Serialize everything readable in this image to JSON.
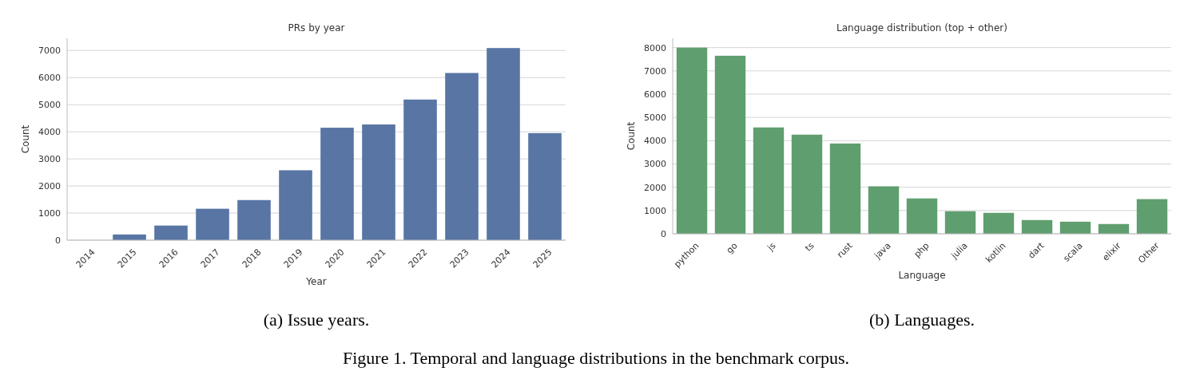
{
  "chart_data": [
    {
      "type": "bar",
      "title": "PRs by year",
      "xlabel": "Year",
      "ylabel": "Count",
      "categories": [
        "2014",
        "2015",
        "2016",
        "2017",
        "2018",
        "2019",
        "2020",
        "2021",
        "2022",
        "2023",
        "2024",
        "2025"
      ],
      "values": [
        null,
        210,
        540,
        1160,
        1480,
        2580,
        4150,
        4270,
        5190,
        6170,
        7090,
        3950
      ],
      "color": "#5875a4",
      "ylim": [
        0,
        7450
      ],
      "yticks": [
        0,
        1000,
        2000,
        3000,
        4000,
        5000,
        6000,
        7000
      ],
      "grid": "y",
      "annotations": [
        "(a) Issue years."
      ]
    },
    {
      "type": "bar",
      "title": "Language distribution (top + other)",
      "xlabel": "Language",
      "ylabel": "Count",
      "categories": [
        "python",
        "go",
        "js",
        "ts",
        "rust",
        "java",
        "php",
        "julia",
        "kotlin",
        "dart",
        "scala",
        "elixir",
        "Other"
      ],
      "values": [
        8000,
        7650,
        4570,
        4260,
        3880,
        2040,
        1520,
        970,
        900,
        590,
        520,
        420,
        1490
      ],
      "color": "#5f9e6e",
      "ylim": [
        0,
        8400
      ],
      "yticks": [
        0,
        1000,
        2000,
        3000,
        4000,
        5000,
        6000,
        7000,
        8000
      ],
      "grid": "y",
      "annotations": [
        "(b) Languages.",
        "Figure 1. Temporal and language distributions in the benchmark corpus."
      ]
    }
  ]
}
